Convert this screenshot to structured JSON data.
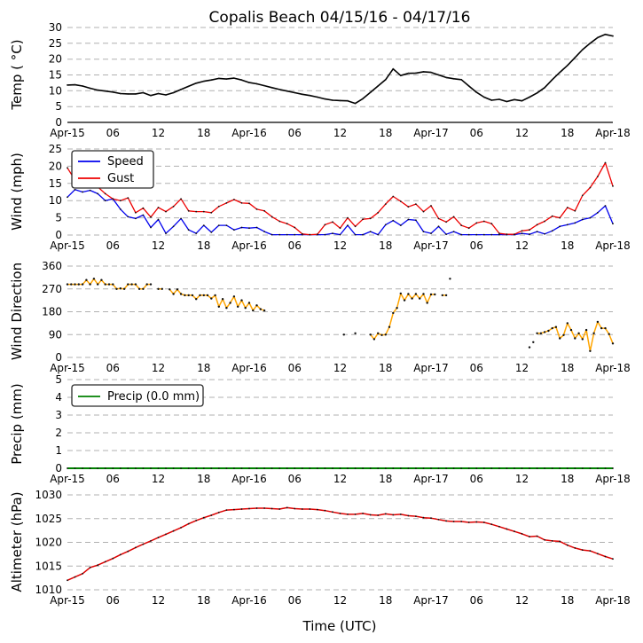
{
  "title": "Copalis Beach 04/15/16 - 04/17/16",
  "xlabel": "Time (UTC)",
  "x_axis": {
    "range_hours": [
      0,
      72
    ],
    "tick_hours": [
      0,
      6,
      12,
      18,
      24,
      30,
      36,
      42,
      48,
      54,
      60,
      66,
      72
    ],
    "tick_labels": [
      "Apr-15",
      "06",
      "12",
      "18",
      "Apr-16",
      "06",
      "12",
      "18",
      "Apr-17",
      "06",
      "12",
      "18",
      "Apr-18"
    ]
  },
  "chart_data": [
    {
      "id": "temp",
      "type": "line",
      "ylabel": "Temp ( °C)",
      "ylim": [
        0,
        30
      ],
      "yticks": [
        0,
        5,
        10,
        15,
        20,
        25,
        30
      ],
      "grid": true,
      "bottom_spine": true,
      "legend": false,
      "series": [
        {
          "name": "Temp",
          "color": "#000000",
          "t_start": 0,
          "t_step": 1,
          "values": [
            11.8,
            11.9,
            11.5,
            10.8,
            10.2,
            9.9,
            9.6,
            9.1,
            9.0,
            9.0,
            9.4,
            8.5,
            9.1,
            8.7,
            9.4,
            10.4,
            11.4,
            12.4,
            13.0,
            13.4,
            13.9,
            13.7,
            14.0,
            13.4,
            12.6,
            12.2,
            11.6,
            11.0,
            10.4,
            9.9,
            9.4,
            8.9,
            8.5,
            8.0,
            7.4,
            7.0,
            6.9,
            6.8,
            6.0,
            7.5,
            9.5,
            11.5,
            13.5,
            16.9,
            14.8,
            15.5,
            15.6,
            16.0,
            15.8,
            15.0,
            14.2,
            13.8,
            13.5,
            11.5,
            9.5,
            8.0,
            7.0,
            7.3,
            6.6,
            7.2,
            6.8,
            8.0,
            9.3,
            11.0,
            13.5,
            15.8,
            18.0,
            20.5,
            23.0,
            25.0,
            26.8,
            27.8,
            27.3
          ]
        }
      ]
    },
    {
      "id": "wind",
      "type": "line",
      "ylabel": "Wind (mph)",
      "ylim": [
        0,
        25
      ],
      "yticks": [
        0,
        5,
        10,
        15,
        20,
        25
      ],
      "grid": true,
      "bottom_spine": false,
      "legend": true,
      "series": [
        {
          "name": "Speed",
          "color": "#0000ee",
          "t_start": 0,
          "t_step": 1,
          "values": [
            11.0,
            13.2,
            12.5,
            13.0,
            12.0,
            10.0,
            10.5,
            7.5,
            5.3,
            4.8,
            5.8,
            2.2,
            4.5,
            0.5,
            2.5,
            4.8,
            1.5,
            0.5,
            2.8,
            0.8,
            2.8,
            2.8,
            1.5,
            2.2,
            2.0,
            2.2,
            1.0,
            0.1,
            0.1,
            0.1,
            0.1,
            0.1,
            0.1,
            0.1,
            0.1,
            0.5,
            0.1,
            2.8,
            0.1,
            0.1,
            1.0,
            0.1,
            3.0,
            4.2,
            2.8,
            4.5,
            4.3,
            1.0,
            0.5,
            2.5,
            0.2,
            1.0,
            0.1,
            0.1,
            0.1,
            0.1,
            0.1,
            0.1,
            0.1,
            0.1,
            0.5,
            0.2,
            1.0,
            0.3,
            1.2,
            2.5,
            3.0,
            3.5,
            4.5,
            5.0,
            6.5,
            8.5,
            3.3
          ]
        },
        {
          "name": "Gust",
          "color": "#ee0000",
          "t_start": 0,
          "t_step": 1,
          "values": [
            19.5,
            16.0,
            15.0,
            16.2,
            14.0,
            12.0,
            10.5,
            10.0,
            10.8,
            6.5,
            7.8,
            5.2,
            8.0,
            6.8,
            8.3,
            10.5,
            7.0,
            6.8,
            6.8,
            6.5,
            8.3,
            9.3,
            10.3,
            9.3,
            9.2,
            7.5,
            7.0,
            5.3,
            4.0,
            3.3,
            2.2,
            0.3,
            0.1,
            0.2,
            3.0,
            3.8,
            2.0,
            5.0,
            2.5,
            4.6,
            4.8,
            6.5,
            9.0,
            11.2,
            9.8,
            8.2,
            9.0,
            6.8,
            8.5,
            4.8,
            3.8,
            5.3,
            2.8,
            2.0,
            3.5,
            4.0,
            3.3,
            0.5,
            0.2,
            0.2,
            1.2,
            1.5,
            3.0,
            4.0,
            5.5,
            5.0,
            8.0,
            7.0,
            11.5,
            13.8,
            17.0,
            21.0,
            14.2
          ]
        }
      ]
    },
    {
      "id": "wind_dir",
      "type": "line",
      "ylabel": "Wind Direction",
      "ylim": [
        0,
        360
      ],
      "yticks": [
        0,
        90,
        180,
        270,
        360
      ],
      "grid": true,
      "bottom_spine": false,
      "legend": false,
      "series": [
        {
          "name": "Direction",
          "color": "#ffa500",
          "segments": [
            [
              [
                0,
                288
              ],
              [
                0.5,
                288
              ],
              [
                1,
                288
              ],
              [
                1.5,
                288
              ],
              [
                2,
                288
              ],
              [
                2.5,
                305
              ],
              [
                3,
                288
              ],
              [
                3.5,
                310
              ],
              [
                4,
                288
              ],
              [
                4.5,
                305
              ],
              [
                5,
                288
              ],
              [
                5.5,
                288
              ],
              [
                6,
                288
              ],
              [
                6.5,
                270
              ],
              [
                7,
                272
              ],
              [
                7.5,
                270
              ],
              [
                8,
                288
              ],
              [
                8.5,
                288
              ],
              [
                9,
                288
              ],
              [
                9.5,
                270
              ],
              [
                10,
                270
              ],
              [
                10.5,
                288
              ],
              [
                11,
                288
              ]
            ],
            [
              [
                12,
                270
              ],
              [
                12.5,
                270
              ]
            ],
            [
              [
                13.5,
                268
              ],
              [
                14,
                250
              ],
              [
                14.5,
                268
              ],
              [
                15,
                250
              ],
              [
                15.5,
                245
              ],
              [
                16,
                245
              ],
              [
                16.5,
                245
              ],
              [
                17,
                230
              ],
              [
                17.5,
                245
              ],
              [
                18,
                245
              ],
              [
                18.5,
                245
              ],
              [
                19,
                232
              ],
              [
                19.5,
                245
              ],
              [
                20,
                200
              ],
              [
                20.5,
                230
              ],
              [
                21,
                195
              ],
              [
                21.5,
                215
              ],
              [
                22,
                240
              ],
              [
                22.5,
                200
              ],
              [
                23,
                225
              ],
              [
                23.5,
                195
              ],
              [
                24,
                215
              ],
              [
                24.5,
                185
              ],
              [
                25,
                205
              ],
              [
                25.5,
                190
              ],
              [
                26,
                185
              ]
            ],
            [
              [
                36.5,
                90
              ]
            ],
            [
              [
                38,
                95
              ]
            ],
            [
              [
                40,
                90
              ],
              [
                40.5,
                72
              ],
              [
                41,
                95
              ],
              [
                41.5,
                88
              ],
              [
                42,
                90
              ],
              [
                42.5,
                120
              ],
              [
                43,
                175
              ],
              [
                43.5,
                195
              ],
              [
                44,
                252
              ],
              [
                44.5,
                225
              ],
              [
                45,
                250
              ],
              [
                45.5,
                232
              ],
              [
                46,
                250
              ],
              [
                46.5,
                232
              ],
              [
                47,
                250
              ],
              [
                47.5,
                215
              ],
              [
                48,
                248
              ],
              [
                48.5,
                248
              ]
            ],
            [
              [
                49.5,
                245
              ],
              [
                50,
                245
              ]
            ],
            [
              [
                50.5,
                310
              ]
            ],
            [
              [
                61,
                40
              ]
            ],
            [
              [
                61.5,
                60
              ]
            ],
            [
              [
                62,
                95
              ],
              [
                62.5,
                95
              ],
              [
                63,
                100
              ],
              [
                63.5,
                105
              ],
              [
                64,
                115
              ],
              [
                64.5,
                120
              ],
              [
                65,
                75
              ],
              [
                65.5,
                88
              ],
              [
                66,
                135
              ],
              [
                66.5,
                108
              ],
              [
                67,
                75
              ],
              [
                67.5,
                95
              ],
              [
                68,
                72
              ],
              [
                68.5,
                108
              ],
              [
                69,
                25
              ],
              [
                69.5,
                95
              ],
              [
                70,
                140
              ],
              [
                70.5,
                115
              ],
              [
                71,
                115
              ],
              [
                71.5,
                92
              ],
              [
                72,
                55
              ]
            ]
          ]
        }
      ]
    },
    {
      "id": "precip",
      "type": "line",
      "ylabel": "Precip (mm)",
      "ylim": [
        0,
        5
      ],
      "yticks": [
        0,
        1,
        2,
        3,
        4,
        5
      ],
      "grid": true,
      "bottom_spine": false,
      "legend": true,
      "series": [
        {
          "name": "Precip (0.0 mm)",
          "color": "#008000",
          "t_start": 0,
          "t_step": 1,
          "values": [
            0,
            0,
            0,
            0,
            0,
            0,
            0,
            0,
            0,
            0,
            0,
            0,
            0,
            0,
            0,
            0,
            0,
            0,
            0,
            0,
            0,
            0,
            0,
            0,
            0,
            0,
            0,
            0,
            0,
            0,
            0,
            0,
            0,
            0,
            0,
            0,
            0,
            0,
            0,
            0,
            0,
            0,
            0,
            0,
            0,
            0,
            0,
            0,
            0,
            0,
            0,
            0,
            0,
            0,
            0,
            0,
            0,
            0,
            0,
            0,
            0,
            0,
            0,
            0,
            0,
            0,
            0,
            0,
            0,
            0,
            0,
            0,
            0
          ]
        }
      ]
    },
    {
      "id": "altimeter",
      "type": "line",
      "ylabel": "Altimeter (hPa)",
      "ylim": [
        1010,
        1030
      ],
      "yticks": [
        1010,
        1015,
        1020,
        1025,
        1030
      ],
      "grid": true,
      "bottom_spine": false,
      "legend": false,
      "series": [
        {
          "name": "Altimeter",
          "color": "#dd0000",
          "t_start": 0,
          "t_step": 1,
          "values": [
            1012.0,
            1012.7,
            1013.4,
            1014.7,
            1015.2,
            1015.9,
            1016.6,
            1017.4,
            1018.1,
            1018.9,
            1019.6,
            1020.3,
            1021.0,
            1021.7,
            1022.4,
            1023.1,
            1023.9,
            1024.6,
            1025.2,
            1025.7,
            1026.3,
            1026.8,
            1026.9,
            1027.0,
            1027.1,
            1027.2,
            1027.2,
            1027.1,
            1027.0,
            1027.3,
            1027.1,
            1027.0,
            1027.0,
            1026.9,
            1026.7,
            1026.4,
            1026.1,
            1025.9,
            1025.9,
            1026.1,
            1025.8,
            1025.7,
            1026.0,
            1025.8,
            1025.9,
            1025.6,
            1025.5,
            1025.2,
            1025.1,
            1024.8,
            1024.5,
            1024.4,
            1024.4,
            1024.2,
            1024.3,
            1024.2,
            1023.8,
            1023.3,
            1022.8,
            1022.3,
            1021.8,
            1021.2,
            1021.3,
            1020.5,
            1020.3,
            1020.2,
            1019.4,
            1018.8,
            1018.4,
            1018.2,
            1017.6,
            1017.0,
            1016.5
          ]
        }
      ]
    }
  ],
  "colors": {
    "gridline": "#b0b0b0",
    "marker": "#111111",
    "speed": "#0000ee",
    "gust": "#ee0000",
    "wind_direction": "#ffa500",
    "precip": "#008000",
    "altimeter": "#dd0000",
    "temp": "#000000"
  }
}
